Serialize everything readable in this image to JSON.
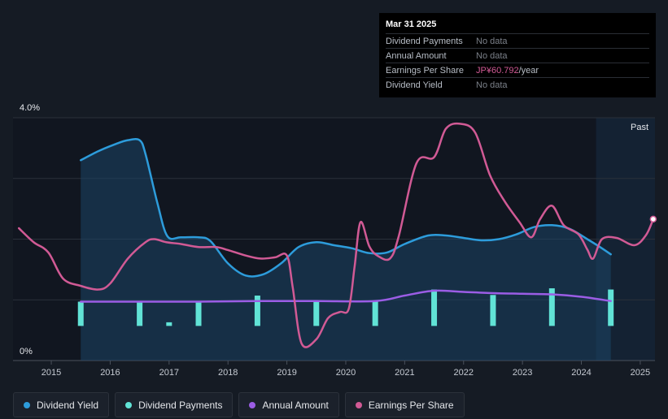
{
  "tooltip": {
    "date": "Mar 31 2025",
    "rows": [
      {
        "label": "Dividend Payments",
        "value": "No data"
      },
      {
        "label": "Annual Amount",
        "value": "No data"
      },
      {
        "label": "Earnings Per Share",
        "value": "JP¥60.792",
        "unit": "/year"
      },
      {
        "label": "Dividend Yield",
        "value": "No data"
      }
    ]
  },
  "legend": [
    {
      "label": "Dividend Yield",
      "color": "#2d9cdb"
    },
    {
      "label": "Dividend Payments",
      "color": "#61e3d6"
    },
    {
      "label": "Annual Amount",
      "color": "#9b5de5"
    },
    {
      "label": "Earnings Per Share",
      "color": "#d15a95"
    }
  ],
  "chart_data": {
    "type": "line",
    "y_top_label": "4.0%",
    "y_bottom_label": "0%",
    "ylim": [
      0,
      4.0
    ],
    "xlim": [
      2014.35,
      2025.25
    ],
    "x_ticks": [
      "2015",
      "2016",
      "2017",
      "2018",
      "2019",
      "2020",
      "2021",
      "2022",
      "2023",
      "2024",
      "2025"
    ],
    "past_label": "Past",
    "past_start": 2024.25,
    "colors": {
      "yield": "#2d9cdb",
      "payments": "#61e3d6",
      "annual": "#9b5de5",
      "eps": "#d15a95"
    },
    "series": [
      {
        "name": "Dividend Yield",
        "key": "yield",
        "points": [
          [
            2015.5,
            3.3
          ],
          [
            2015.8,
            3.45
          ],
          [
            2016.1,
            3.57
          ],
          [
            2016.3,
            3.63
          ],
          [
            2016.5,
            3.63
          ],
          [
            2016.6,
            3.4
          ],
          [
            2016.8,
            2.6
          ],
          [
            2016.97,
            2.05
          ],
          [
            2017.2,
            2.03
          ],
          [
            2017.5,
            2.03
          ],
          [
            2017.7,
            1.97
          ],
          [
            2018.0,
            1.6
          ],
          [
            2018.3,
            1.4
          ],
          [
            2018.6,
            1.42
          ],
          [
            2018.9,
            1.6
          ],
          [
            2019.2,
            1.87
          ],
          [
            2019.5,
            1.95
          ],
          [
            2019.8,
            1.9
          ],
          [
            2020.1,
            1.85
          ],
          [
            2020.4,
            1.77
          ],
          [
            2020.7,
            1.78
          ],
          [
            2021.0,
            1.92
          ],
          [
            2021.4,
            2.06
          ],
          [
            2021.7,
            2.06
          ],
          [
            2022.0,
            2.02
          ],
          [
            2022.3,
            1.98
          ],
          [
            2022.6,
            2.0
          ],
          [
            2022.9,
            2.08
          ],
          [
            2023.2,
            2.2
          ],
          [
            2023.5,
            2.23
          ],
          [
            2023.8,
            2.17
          ],
          [
            2024.1,
            2.0
          ],
          [
            2024.3,
            1.88
          ],
          [
            2024.5,
            1.75
          ]
        ]
      },
      {
        "name": "Earnings Per Share",
        "key": "eps",
        "points": [
          [
            2014.45,
            2.18
          ],
          [
            2014.7,
            1.95
          ],
          [
            2014.95,
            1.78
          ],
          [
            2015.2,
            1.35
          ],
          [
            2015.5,
            1.23
          ],
          [
            2015.8,
            1.17
          ],
          [
            2016.0,
            1.27
          ],
          [
            2016.3,
            1.68
          ],
          [
            2016.6,
            1.95
          ],
          [
            2016.75,
            2.0
          ],
          [
            2016.95,
            1.95
          ],
          [
            2017.2,
            1.92
          ],
          [
            2017.5,
            1.87
          ],
          [
            2017.8,
            1.87
          ],
          [
            2018.0,
            1.82
          ],
          [
            2018.3,
            1.73
          ],
          [
            2018.55,
            1.68
          ],
          [
            2018.8,
            1.7
          ],
          [
            2019.0,
            1.73
          ],
          [
            2019.1,
            1.2
          ],
          [
            2019.25,
            0.28
          ],
          [
            2019.5,
            0.35
          ],
          [
            2019.7,
            0.7
          ],
          [
            2019.9,
            0.8
          ],
          [
            2020.05,
            0.85
          ],
          [
            2020.15,
            1.55
          ],
          [
            2020.25,
            2.28
          ],
          [
            2020.4,
            1.88
          ],
          [
            2020.55,
            1.72
          ],
          [
            2020.75,
            1.68
          ],
          [
            2020.9,
            2.05
          ],
          [
            2021.2,
            3.25
          ],
          [
            2021.5,
            3.35
          ],
          [
            2021.7,
            3.82
          ],
          [
            2021.95,
            3.9
          ],
          [
            2022.2,
            3.75
          ],
          [
            2022.45,
            3.05
          ],
          [
            2022.7,
            2.62
          ],
          [
            2022.95,
            2.28
          ],
          [
            2023.15,
            2.03
          ],
          [
            2023.3,
            2.33
          ],
          [
            2023.5,
            2.55
          ],
          [
            2023.7,
            2.23
          ],
          [
            2023.95,
            2.08
          ],
          [
            2024.1,
            1.83
          ],
          [
            2024.2,
            1.68
          ],
          [
            2024.35,
            2.0
          ],
          [
            2024.6,
            2.02
          ],
          [
            2024.9,
            1.9
          ],
          [
            2025.1,
            2.07
          ],
          [
            2025.22,
            2.33
          ]
        ]
      },
      {
        "name": "Annual Amount",
        "key": "annual",
        "points": [
          [
            2015.5,
            0.97
          ],
          [
            2016.5,
            0.97
          ],
          [
            2017.5,
            0.97
          ],
          [
            2018.5,
            0.98
          ],
          [
            2019.5,
            0.98
          ],
          [
            2020.5,
            0.98
          ],
          [
            2021.0,
            1.07
          ],
          [
            2021.5,
            1.15
          ],
          [
            2022.0,
            1.13
          ],
          [
            2022.5,
            1.11
          ],
          [
            2023.0,
            1.1
          ],
          [
            2023.5,
            1.09
          ],
          [
            2024.0,
            1.05
          ],
          [
            2024.5,
            0.98
          ]
        ]
      }
    ],
    "dividend_payments": [
      {
        "x": 2015.5,
        "top": 0.97,
        "bottom": 0.57
      },
      {
        "x": 2016.5,
        "top": 0.97,
        "bottom": 0.57
      },
      {
        "x": 2017.0,
        "top": 0.63,
        "bottom": 0.57
      },
      {
        "x": 2017.5,
        "top": 0.97,
        "bottom": 0.57
      },
      {
        "x": 2018.5,
        "top": 1.07,
        "bottom": 0.57
      },
      {
        "x": 2019.5,
        "top": 0.97,
        "bottom": 0.57
      },
      {
        "x": 2020.5,
        "top": 0.97,
        "bottom": 0.57
      },
      {
        "x": 2021.5,
        "top": 1.17,
        "bottom": 0.57
      },
      {
        "x": 2022.5,
        "top": 1.08,
        "bottom": 0.57
      },
      {
        "x": 2023.5,
        "top": 1.19,
        "bottom": 0.57
      },
      {
        "x": 2024.5,
        "top": 1.17,
        "bottom": 0.57
      }
    ]
  }
}
